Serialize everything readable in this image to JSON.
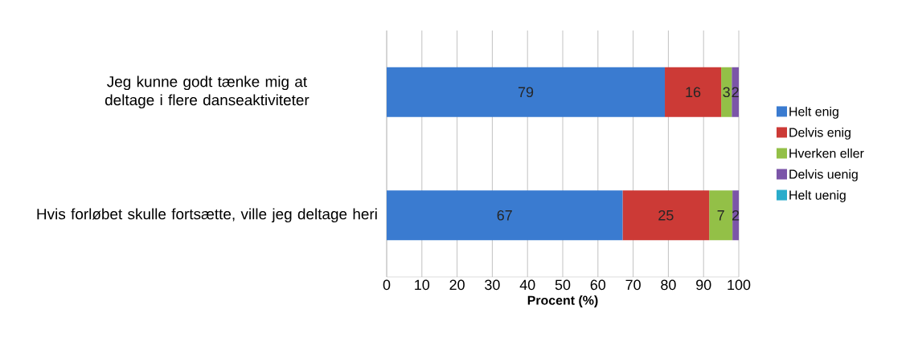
{
  "chart_data": {
    "type": "bar",
    "orientation": "horizontal",
    "stacked": true,
    "categories": [
      "Jeg kunne godt tænke mig at deltage i flere danseaktiviteter",
      "Hvis forløbet skulle fortsætte, ville jeg deltage heri"
    ],
    "series": [
      {
        "name": "Helt enig",
        "color": "#3a7bd0",
        "values": [
          79,
          67
        ],
        "value_labels": [
          "79",
          "67"
        ]
      },
      {
        "name": "Delvis enig",
        "color": "#cc3a36",
        "values": [
          16,
          24.6
        ],
        "value_labels": [
          "16",
          "25"
        ]
      },
      {
        "name": "Hverken eller",
        "color": "#93c047",
        "values": [
          3,
          6.6
        ],
        "value_labels": [
          "3",
          "7"
        ]
      },
      {
        "name": "Delvis uenig",
        "color": "#7b55a8",
        "values": [
          2,
          1.8
        ],
        "value_labels": [
          "2",
          "2"
        ]
      },
      {
        "name": "Helt uenig",
        "color": "#2aaccb",
        "values": [
          0,
          0
        ],
        "value_labels": [
          null,
          null
        ]
      }
    ],
    "xlim": [
      0,
      100
    ],
    "xticks": [
      0,
      10,
      20,
      30,
      40,
      50,
      60,
      70,
      80,
      90,
      100
    ],
    "xlabel": "Procent (%)",
    "grid": "x",
    "legend": "right"
  }
}
